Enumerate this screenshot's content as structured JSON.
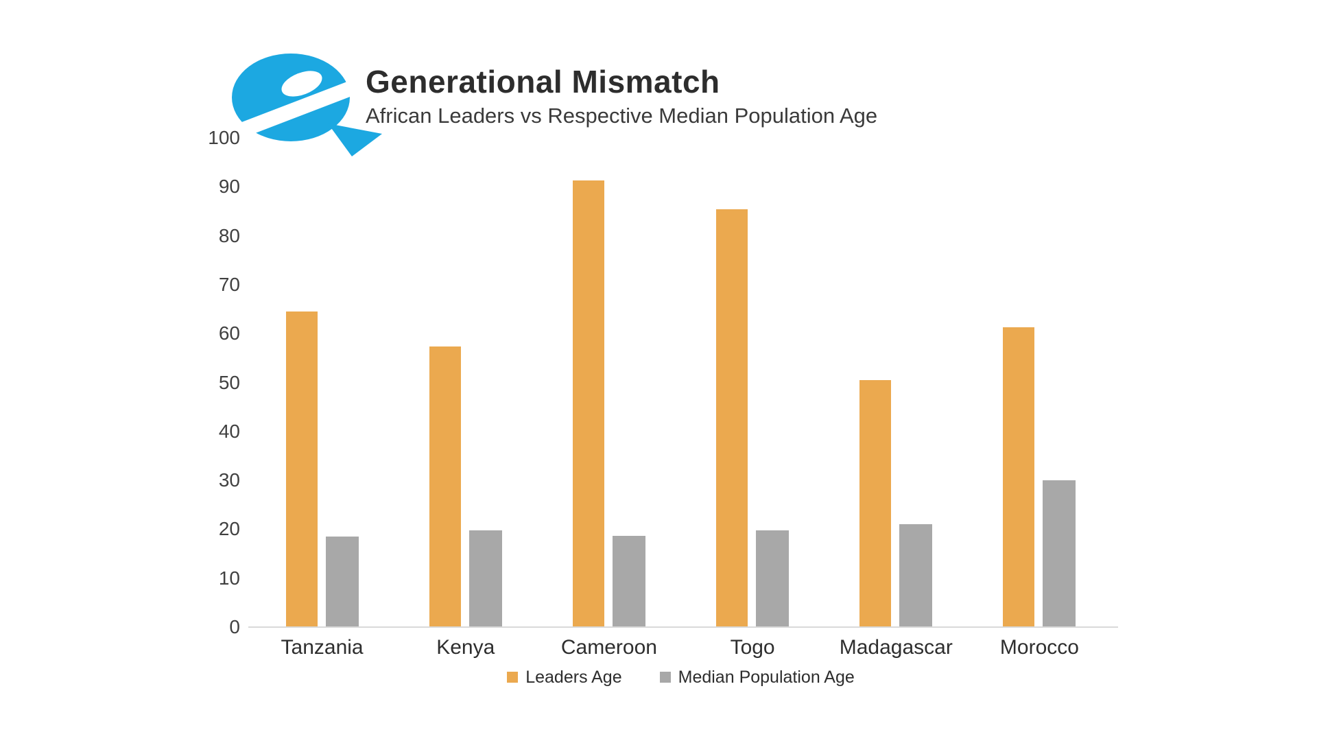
{
  "brand": {
    "logo_name": "blue-e-speech-bubble-logo",
    "logo_color": "#1CA8E1"
  },
  "header": {
    "title": "Generational Mismatch",
    "subtitle": "African Leaders vs Respective Median Population Age"
  },
  "chart_data": {
    "type": "bar",
    "title": "Generational Mismatch",
    "subtitle": "African Leaders vs Respective Median Population Age",
    "categories": [
      "Tanzania",
      "Kenya",
      "Cameroon",
      "Togo",
      "Madagascar",
      "Morocco"
    ],
    "series": [
      {
        "name": "Leaders Age",
        "color": "#EBA94F",
        "values": [
          64.5,
          57.4,
          91.3,
          85.4,
          50.5,
          61.3
        ]
      },
      {
        "name": "Median Population Age",
        "color": "#A8A8A8",
        "values": [
          18.5,
          19.8,
          18.7,
          19.8,
          21.0,
          30.0
        ]
      }
    ],
    "xlabel": "",
    "ylabel": "",
    "ylim": [
      0,
      100
    ],
    "yticks": [
      0,
      10,
      20,
      30,
      40,
      50,
      60,
      70,
      80,
      90,
      100
    ],
    "grid": false,
    "gridlines": "none",
    "legend_position": "bottom",
    "axis_line_color": "#D9D9D9",
    "tick_label_color": "#404040",
    "background": "#FFFFFF"
  }
}
